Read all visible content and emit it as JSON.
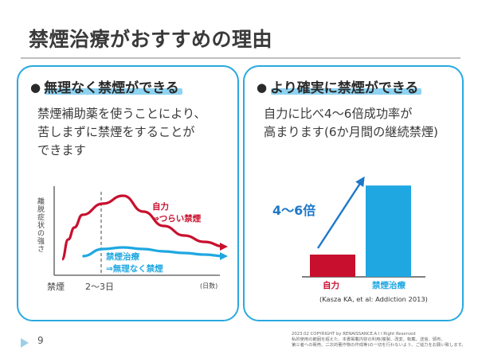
{
  "slide": {
    "title": "禁煙治療がおすすめの理由",
    "page_number": "9"
  },
  "left_card": {
    "bullet": "●",
    "heading": "無理なく禁煙ができる",
    "body_lines": [
      "禁煙補助薬を使うことにより、",
      "苦しまずに禁煙をすることが",
      "できます"
    ],
    "chart_labels": {
      "ylabel": "離脱症状の強さ",
      "x_start": "禁煙",
      "x_mid": "2〜3日",
      "x_unit": "(日数)",
      "red_line_1": "自力",
      "red_line_2": "⇒つらい禁煙",
      "blue_line_1": "禁煙治療",
      "blue_line_2": "⇒無理なく禁煙"
    }
  },
  "right_card": {
    "bullet": "●",
    "heading": "より確実に禁煙ができる",
    "body_lines": [
      "自力に比べ4〜6倍成功率が",
      "高まります(6か月間の継続禁煙)"
    ],
    "arrow_label": "4〜6倍",
    "source": "(Kasza KA, et al: Addiction  2013)"
  },
  "chart_data": [
    {
      "type": "line",
      "title": "",
      "xlabel": "(日数)",
      "ylabel": "離脱症状の強さ",
      "x_tick_labels": [
        "禁煙",
        "2〜3日"
      ],
      "series": [
        {
          "name": "自力 ⇒つらい禁煙",
          "color": "#c8102e",
          "x": [
            0,
            0.3,
            0.6,
            1,
            2,
            3,
            4,
            5,
            6,
            7,
            8
          ],
          "y": [
            0.2,
            0.45,
            0.6,
            0.76,
            0.9,
            1.0,
            0.8,
            0.62,
            0.5,
            0.42,
            0.36
          ]
        },
        {
          "name": "禁煙治療 ⇒無理なく禁煙",
          "color": "#1fa7e1",
          "x": [
            1,
            2,
            3,
            4,
            5,
            6,
            7,
            8
          ],
          "y": [
            0.24,
            0.33,
            0.35,
            0.33,
            0.3,
            0.28,
            0.26,
            0.24
          ]
        }
      ]
    },
    {
      "type": "bar",
      "title": "",
      "categories": [
        "自力",
        "禁煙治療"
      ],
      "values": [
        1,
        4.1
      ],
      "colors": [
        "#c8102e",
        "#1fa7e1"
      ],
      "annotation": "4〜6倍"
    }
  ],
  "footer": {
    "copyright_lines": [
      "2023.02   COPYRIGHT by RENAISSANCE.A I I  Right Reserved",
      "私的使用の範囲を超えた、本書掲載内容の利用(複製、改変、転載、送信、頒布、",
      "第三者への販売、二次的著作物の作成等)の一切を行わないよう、ご協力をお願い致します。"
    ]
  },
  "colors": {
    "accent_blue": "#29a9e0",
    "highlight": "#8ed3f2",
    "red": "#c8102e",
    "blue": "#1fa7e1",
    "arrow_label": "#1e78c8"
  }
}
